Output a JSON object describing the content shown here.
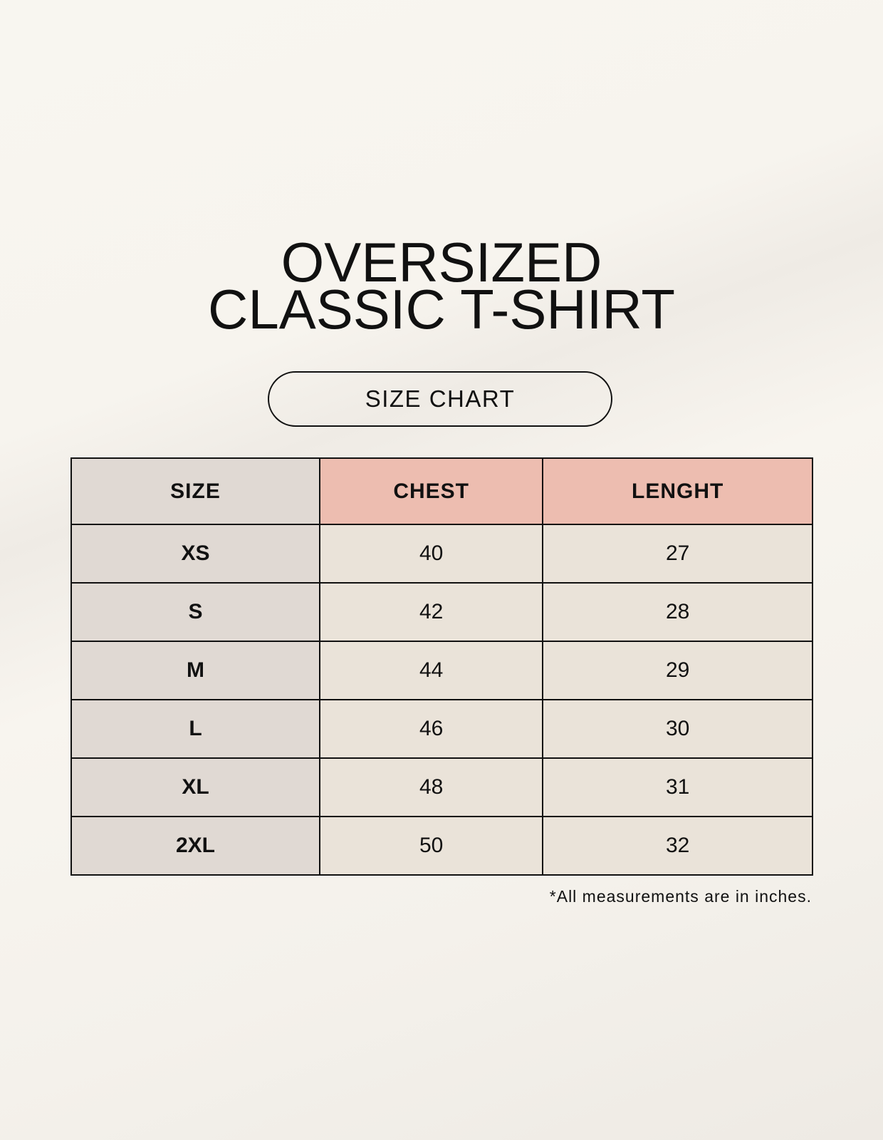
{
  "title": {
    "line1": "OVERSIZED",
    "line2": "CLASSIC T-SHIRT"
  },
  "subtitle": "SIZE CHART",
  "table": {
    "headers": [
      "SIZE",
      "CHEST",
      "LENGHT"
    ],
    "rows": [
      [
        "XS",
        "40",
        "27"
      ],
      [
        "S",
        "42",
        "28"
      ],
      [
        "M",
        "44",
        "29"
      ],
      [
        "L",
        "46",
        "30"
      ],
      [
        "XL",
        "48",
        "31"
      ],
      [
        "2XL",
        "50",
        "32"
      ]
    ]
  },
  "footnote": "*All measurements are in inches.",
  "colors": {
    "size_column": "#e0d9d3",
    "header_accent": "#edbdb0",
    "cell": "#eae3d9"
  }
}
